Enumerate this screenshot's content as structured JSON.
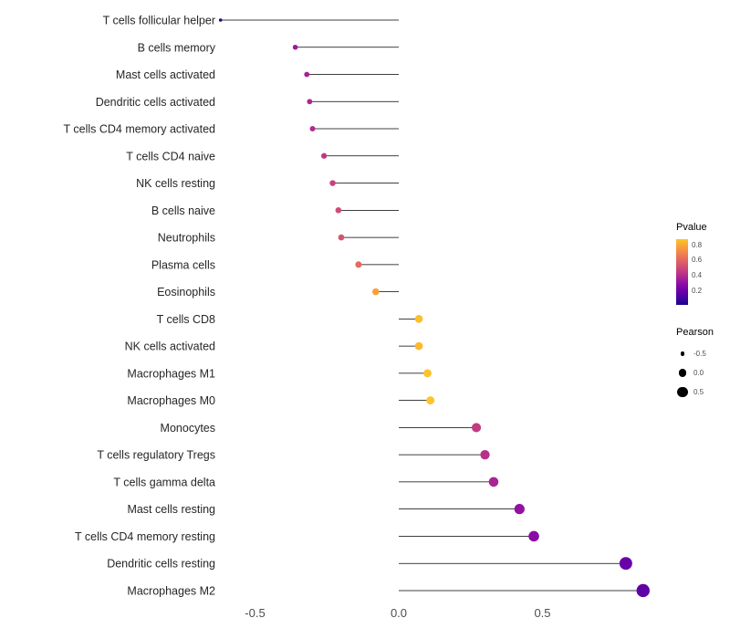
{
  "chart_data": {
    "type": "lollipop",
    "title": "",
    "xlabel": "",
    "ylabel": "",
    "x_ticks": [
      {
        "value": -0.5,
        "label": "-0.5"
      },
      {
        "value": 0.0,
        "label": "0.0"
      },
      {
        "value": 0.5,
        "label": "0.5"
      }
    ],
    "xlim": [
      -0.68,
      0.95
    ],
    "points": [
      {
        "cell": "T cells follicular helper",
        "pearson": -0.62,
        "pvalue": 0.02
      },
      {
        "cell": "B cells memory",
        "pearson": -0.36,
        "pvalue": 0.34
      },
      {
        "cell": "Mast cells activated",
        "pearson": -0.32,
        "pvalue": 0.37
      },
      {
        "cell": "Dendritic cells activated",
        "pearson": -0.31,
        "pvalue": 0.39
      },
      {
        "cell": "T cells CD4 memory activated",
        "pearson": -0.3,
        "pvalue": 0.4
      },
      {
        "cell": "T cells CD4 naive",
        "pearson": -0.26,
        "pvalue": 0.44
      },
      {
        "cell": "NK cells resting",
        "pearson": -0.23,
        "pvalue": 0.48
      },
      {
        "cell": "B cells naive",
        "pearson": -0.21,
        "pvalue": 0.52
      },
      {
        "cell": "Neutrophils",
        "pearson": -0.2,
        "pvalue": 0.54
      },
      {
        "cell": "Plasma cells",
        "pearson": -0.14,
        "pvalue": 0.62
      },
      {
        "cell": "Eosinophils",
        "pearson": -0.08,
        "pvalue": 0.78
      },
      {
        "cell": "T cells CD8",
        "pearson": 0.07,
        "pvalue": 0.86
      },
      {
        "cell": "NK cells activated",
        "pearson": 0.07,
        "pvalue": 0.85
      },
      {
        "cell": "Macrophages M1",
        "pearson": 0.1,
        "pvalue": 0.87
      },
      {
        "cell": "Macrophages M0",
        "pearson": 0.11,
        "pvalue": 0.88
      },
      {
        "cell": "Monocytes",
        "pearson": 0.27,
        "pvalue": 0.46
      },
      {
        "cell": "T cells regulatory  Tregs",
        "pearson": 0.3,
        "pvalue": 0.42
      },
      {
        "cell": "T cells gamma delta",
        "pearson": 0.33,
        "pvalue": 0.38
      },
      {
        "cell": "Mast cells resting",
        "pearson": 0.42,
        "pvalue": 0.31
      },
      {
        "cell": "T cells CD4 memory resting",
        "pearson": 0.47,
        "pvalue": 0.28
      },
      {
        "cell": "Dendritic cells resting",
        "pearson": 0.79,
        "pvalue": 0.2
      },
      {
        "cell": "Macrophages M2",
        "pearson": 0.85,
        "pvalue": 0.17
      }
    ],
    "legend": {
      "color": {
        "title": "Pvalue",
        "colormap": "plasma",
        "domain": [
          0.02,
          0.88
        ],
        "ticks": [
          {
            "value": 0.8,
            "label": "0.8"
          },
          {
            "value": 0.6,
            "label": "0.6"
          },
          {
            "value": 0.4,
            "label": "0.4"
          },
          {
            "value": 0.2,
            "label": "0.2"
          }
        ]
      },
      "size": {
        "title": "Pearson",
        "ticks": [
          {
            "value": -0.5,
            "label": "-0.5"
          },
          {
            "value": 0.0,
            "label": "0.0"
          },
          {
            "value": 0.5,
            "label": "0.5"
          }
        ]
      }
    },
    "colors": {
      "stem": "#000000",
      "axis_text": "#4d4d4d",
      "category_text": "#262626",
      "background": "#ffffff",
      "plasma_stops": [
        "#0d0887",
        "#41049d",
        "#6a00a8",
        "#8f0da4",
        "#b12a90",
        "#cc4778",
        "#e16462",
        "#f2844b",
        "#fca636",
        "#fcce25",
        "#f0f921"
      ]
    },
    "grid": false,
    "legend_position": "right"
  }
}
